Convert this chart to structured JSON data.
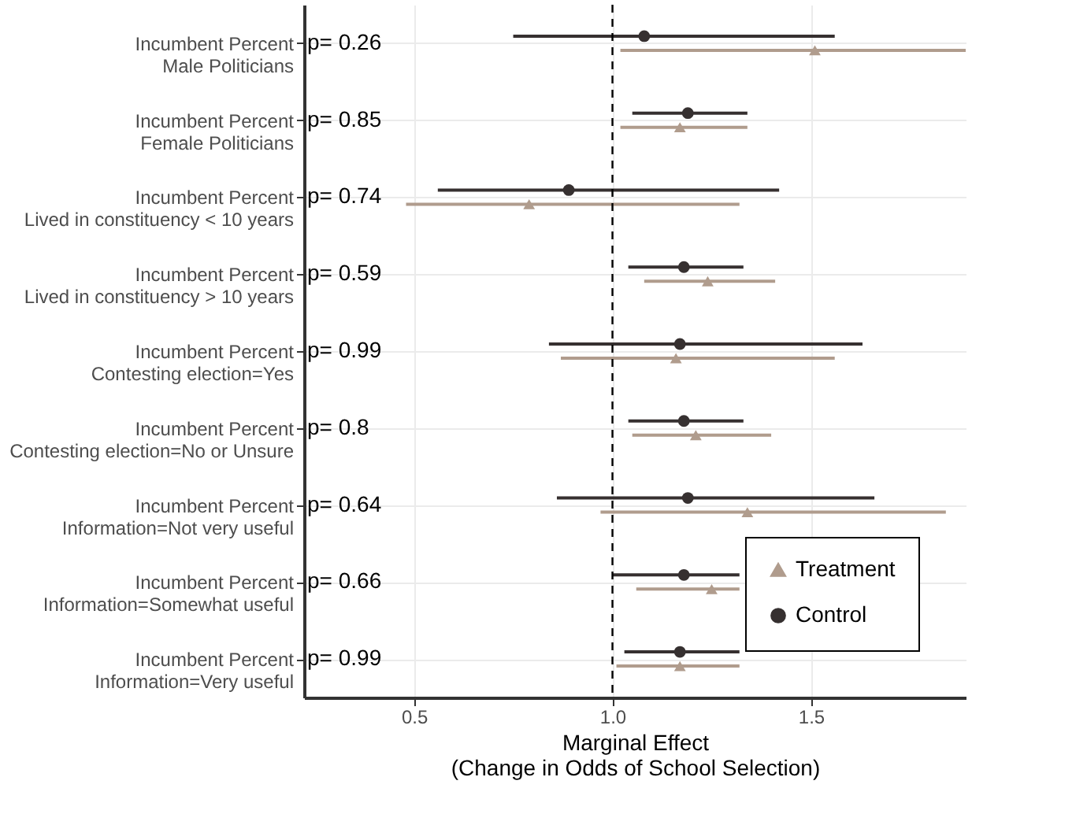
{
  "chart_data": {
    "type": "scatter",
    "xlabel": "Marginal Effect\n(Change in Odds of School Selection)",
    "categories": [
      "Incumbent Percent\nMale Politicians",
      "Incumbent Percent\nFemale Politicians",
      "Incumbent Percent\nLived in constituency < 10 years",
      "Incumbent Percent\nLived in constituency > 10 years",
      "Incumbent Percent\nContesting election=Yes",
      "Incumbent Percent\nContesting election=No or Unsure",
      "Incumbent Percent\nInformation=Not very useful",
      "Incumbent Percent\nInformation=Somewhat useful",
      "Incumbent Percent\nInformation=Very useful"
    ],
    "series": [
      {
        "name": "Treatment",
        "color": "#b09c8d",
        "marker": "triangle",
        "values": [
          1.51,
          1.17,
          0.79,
          1.24,
          1.16,
          1.21,
          1.34,
          1.25,
          1.17
        ],
        "errors": [
          [
            1.02,
            1.89
          ],
          [
            1.02,
            1.34
          ],
          [
            0.48,
            1.32
          ],
          [
            1.08,
            1.41
          ],
          [
            0.87,
            1.56
          ],
          [
            1.05,
            1.4
          ],
          [
            0.97,
            1.84
          ],
          [
            1.06,
            1.32
          ],
          [
            1.01,
            1.32
          ]
        ]
      },
      {
        "name": "Control",
        "color": "#363030",
        "marker": "circle",
        "values": [
          1.08,
          1.19,
          0.89,
          1.18,
          1.17,
          1.18,
          1.19,
          1.18,
          1.17
        ],
        "errors": [
          [
            0.75,
            1.56
          ],
          [
            1.05,
            1.34
          ],
          [
            0.56,
            1.42
          ],
          [
            1.04,
            1.33
          ],
          [
            0.84,
            1.63
          ],
          [
            1.04,
            1.33
          ],
          [
            0.86,
            1.66
          ],
          [
            1.0,
            1.32
          ],
          [
            1.03,
            1.32
          ]
        ]
      }
    ],
    "xlim": [
      0.223,
      1.89
    ],
    "xticks": [
      {
        "value": 0.5,
        "label": "0.5"
      },
      {
        "value": 1,
        "label": "1.0"
      },
      {
        "value": 1.5,
        "label": "1.5"
      }
    ],
    "ref_lines": [
      {
        "axis": "x",
        "value": 1,
        "line_style": "dashed",
        "color": "#000000"
      }
    ],
    "annotations": [
      "p= 0.26",
      "p= 0.85",
      "p= 0.74",
      "p= 0.59",
      "p= 0.99",
      "p= 0.8",
      "p= 0.64",
      "p= 0.66",
      "p= 0.99"
    ],
    "orientation": "horizontal",
    "grid": true,
    "legend": "bottom right"
  }
}
